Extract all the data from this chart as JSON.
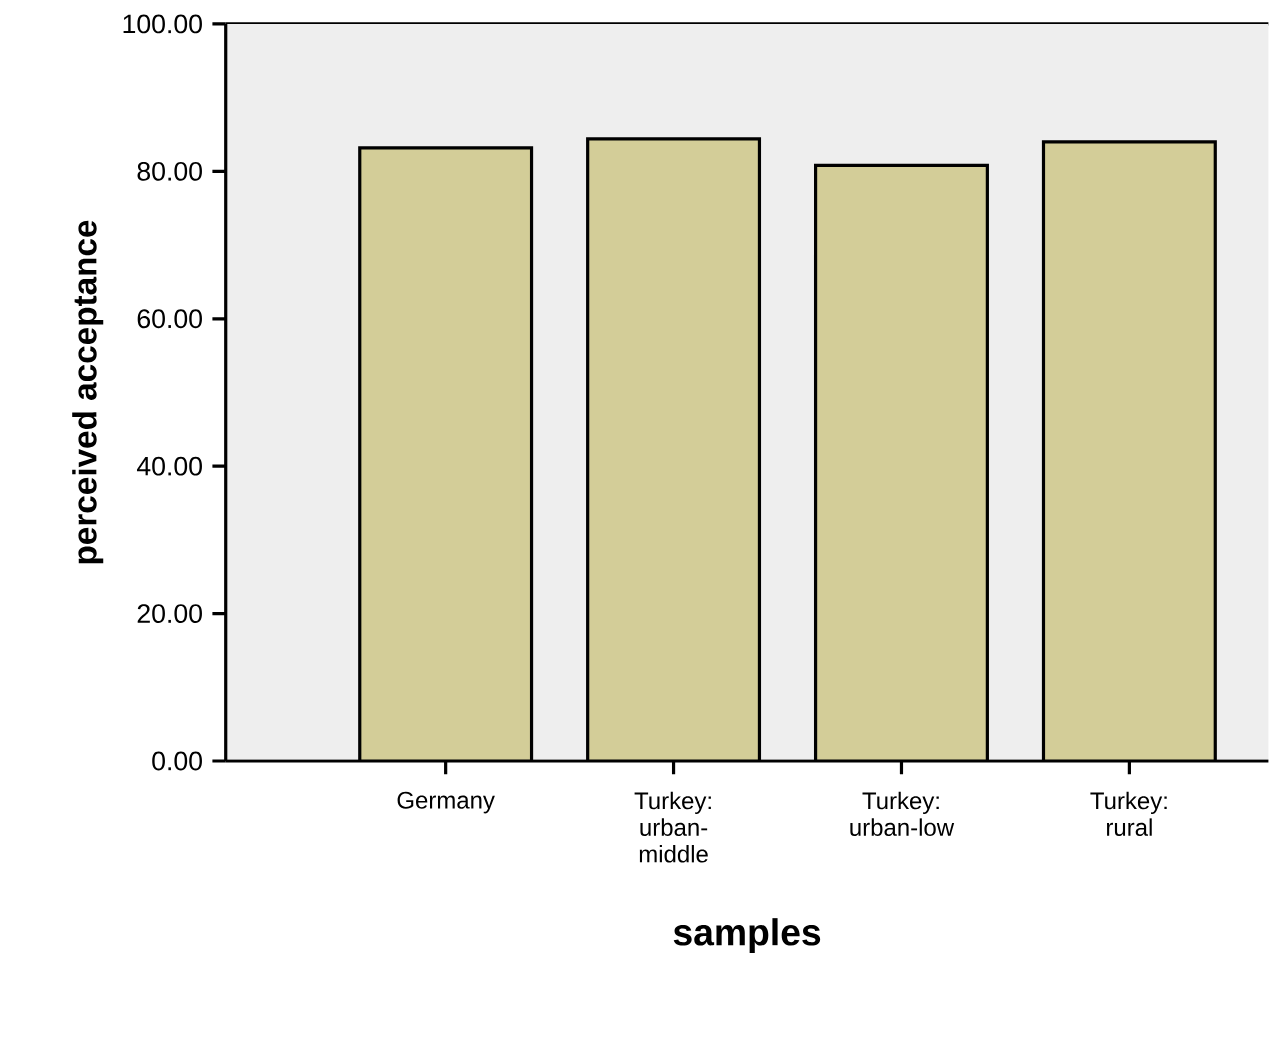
{
  "chart_data": {
    "type": "bar",
    "xlabel": "samples",
    "ylabel": "perceived acceptance",
    "categories": [
      "Germany",
      "Turkey: urban-middle",
      "Turkey: urban-low",
      "Turkey: rural"
    ],
    "values": [
      83.2,
      84.4,
      80.8,
      84.0
    ],
    "color": "#d3cd98",
    "ylim": [
      0,
      100
    ],
    "yticks": [
      {
        "value": 0,
        "label": "0.00"
      },
      {
        "value": 20,
        "label": "20.00"
      },
      {
        "value": 40,
        "label": "40.00"
      },
      {
        "value": 60,
        "label": "60.00"
      },
      {
        "value": 80,
        "label": "80.00"
      },
      {
        "value": 100,
        "label": "100.00"
      }
    ]
  }
}
